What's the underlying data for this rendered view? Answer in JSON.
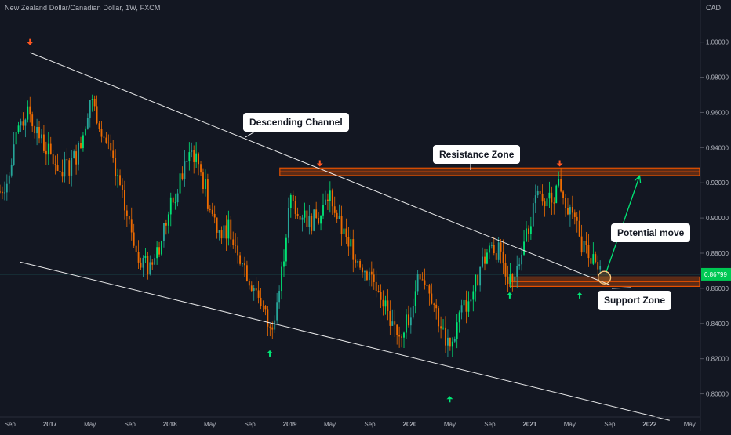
{
  "header": {
    "symbol_title": "New Zealand Dollar/Canadian Dollar, 1W, FXCM",
    "currency": "CAD"
  },
  "annotations": {
    "descending_channel": "Descending Channel",
    "resistance_zone": "Resistance Zone",
    "potential_move": "Potential move",
    "support_zone": "Support Zone"
  },
  "colors": {
    "background": "#131722",
    "up_candle": "#26a69a",
    "up_candle_bright": "#00e676",
    "down_candle": "#ef6c00",
    "zone_fill": "#e65100",
    "arrow_down": "#ff5722",
    "arrow_up": "#00e676",
    "channel_line": "#ffffff",
    "potential_move": "#00e676",
    "axis_text": "#b2b5be",
    "price_tag": "#00c853"
  },
  "chart_data": {
    "type": "candlestick",
    "title": "New Zealand Dollar/Canadian Dollar, 1W, FXCM",
    "x_ticks": [
      "Sep",
      "2017",
      "May",
      "Sep",
      "2018",
      "May",
      "Sep",
      "2019",
      "May",
      "Sep",
      "2020",
      "May",
      "Sep",
      "2021",
      "May",
      "Sep",
      "2022",
      "May"
    ],
    "y_ticks": [
      "1.00000",
      "0.98000",
      "0.96000",
      "0.94000",
      "0.92000",
      "0.90000",
      "0.88000",
      "0.86000",
      "0.84000",
      "0.82000",
      "0.80000"
    ],
    "ylim": [
      0.79,
      1.015
    ],
    "x_range": [
      "2016-08",
      "2022-06"
    ],
    "current_price_label": "0.86799",
    "current_price": 0.868,
    "price_path": [
      [
        "2016-08",
        0.915
      ],
      [
        "2016-09",
        0.925
      ],
      [
        "2016-10",
        0.955
      ],
      [
        "2016-11",
        0.96
      ],
      [
        "2016-12",
        0.945
      ],
      [
        "2017-01",
        0.935
      ],
      [
        "2017-02",
        0.928
      ],
      [
        "2017-03",
        0.93
      ],
      [
        "2017-04",
        0.94
      ],
      [
        "2017-05",
        0.968
      ],
      [
        "2017-06",
        0.955
      ],
      [
        "2017-07",
        0.935
      ],
      [
        "2017-08",
        0.915
      ],
      [
        "2017-09",
        0.895
      ],
      [
        "2017-10",
        0.878
      ],
      [
        "2017-11",
        0.87
      ],
      [
        "2017-12",
        0.885
      ],
      [
        "2018-01",
        0.905
      ],
      [
        "2018-02",
        0.92
      ],
      [
        "2018-03",
        0.94
      ],
      [
        "2018-04",
        0.93
      ],
      [
        "2018-05",
        0.905
      ],
      [
        "2018-06",
        0.893
      ],
      [
        "2018-07",
        0.895
      ],
      [
        "2018-08",
        0.88
      ],
      [
        "2018-09",
        0.865
      ],
      [
        "2018-10",
        0.855
      ],
      [
        "2018-11",
        0.835
      ],
      [
        "2018-12",
        0.86
      ],
      [
        "2019-01",
        0.91
      ],
      [
        "2019-02",
        0.905
      ],
      [
        "2019-03",
        0.898
      ],
      [
        "2019-04",
        0.9
      ],
      [
        "2019-05",
        0.915
      ],
      [
        "2019-06",
        0.895
      ],
      [
        "2019-07",
        0.885
      ],
      [
        "2019-08",
        0.875
      ],
      [
        "2019-09",
        0.868
      ],
      [
        "2019-10",
        0.86
      ],
      [
        "2019-11",
        0.84
      ],
      [
        "2019-12",
        0.835
      ],
      [
        "2020-01",
        0.845
      ],
      [
        "2020-02",
        0.87
      ],
      [
        "2020-03",
        0.86
      ],
      [
        "2020-04",
        0.84
      ],
      [
        "2020-05",
        0.823
      ],
      [
        "2020-06",
        0.845
      ],
      [
        "2020-07",
        0.855
      ],
      [
        "2020-08",
        0.868
      ],
      [
        "2020-09",
        0.885
      ],
      [
        "2020-10",
        0.88
      ],
      [
        "2020-11",
        0.865
      ],
      [
        "2020-12",
        0.875
      ],
      [
        "2021-01",
        0.898
      ],
      [
        "2021-02",
        0.915
      ],
      [
        "2021-03",
        0.91
      ],
      [
        "2021-04",
        0.92
      ],
      [
        "2021-05",
        0.905
      ],
      [
        "2021-06",
        0.888
      ],
      [
        "2021-07",
        0.878
      ],
      [
        "2021-08",
        0.868
      ]
    ],
    "descending_channel": {
      "upper": [
        [
          "2016-11",
          0.994
        ],
        [
          "2021-09",
          0.862
        ]
      ],
      "lower": [
        [
          "2016-10",
          0.875
        ],
        [
          "2022-03",
          0.785
        ]
      ]
    },
    "resistance_zone": {
      "from": "2018-12",
      "to": "2022-06",
      "low": 0.925,
      "high": 0.928
    },
    "support_zone": {
      "from": "2020-11",
      "to": "2022-06",
      "low": 0.862,
      "high": 0.866
    },
    "potential_move": {
      "from": [
        "2021-08",
        0.867
      ],
      "to": [
        "2021-12",
        0.924
      ]
    },
    "marked_circle": [
      "2021-08",
      0.867
    ],
    "down_arrows": [
      [
        "2016-11",
        1.0
      ],
      [
        "2019-04",
        0.931
      ],
      [
        "2021-04",
        0.931
      ]
    ],
    "up_arrows": [
      [
        "2018-11",
        0.823
      ],
      [
        "2020-05",
        0.797
      ],
      [
        "2020-11",
        0.856
      ],
      [
        "2021-06",
        0.856
      ]
    ]
  }
}
